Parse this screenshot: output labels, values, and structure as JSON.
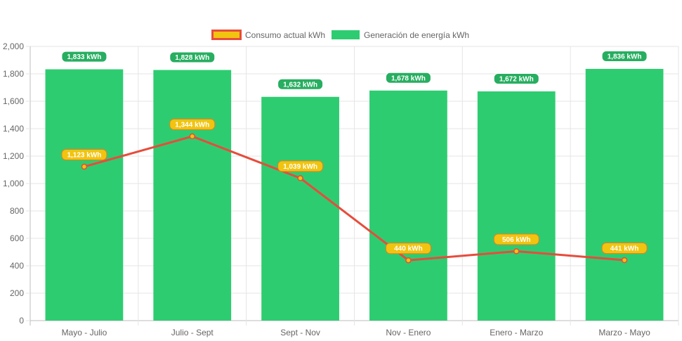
{
  "chart_data": {
    "type": "bar",
    "categories": [
      "Mayo - Julio",
      "Julio - Sept",
      "Sept - Nov",
      "Nov - Enero",
      "Enero - Marzo",
      "Marzo - Mayo"
    ],
    "ylim": [
      0,
      2000
    ],
    "yticks": [
      0,
      200,
      400,
      600,
      800,
      1000,
      1200,
      1400,
      1600,
      1800,
      2000
    ],
    "ytick_labels": [
      "0",
      "200",
      "400",
      "600",
      "800",
      "1,000",
      "1,200",
      "1,400",
      "1,600",
      "1,800",
      "2,000"
    ],
    "grid": true,
    "legend_position": "top",
    "series": [
      {
        "name": "Consumo actual kWh",
        "type": "line",
        "values": [
          1123,
          1344,
          1039,
          440,
          506,
          441
        ],
        "labels": [
          "1,123 kWh",
          "1,344 kWh",
          "1,039 kWh",
          "440 kWh",
          "506 kWh",
          "441 kWh"
        ],
        "color": "#e74c3c",
        "fill_color": "#f1c40f"
      },
      {
        "name": "Generación de energía kWh",
        "type": "bar",
        "values": [
          1833,
          1828,
          1632,
          1678,
          1672,
          1836
        ],
        "labels": [
          "1,833 kWh",
          "1,828 kWh",
          "1,632 kWh",
          "1,678 kWh",
          "1,672 kWh",
          "1,836 kWh"
        ],
        "color": "#2ecc71"
      }
    ]
  }
}
